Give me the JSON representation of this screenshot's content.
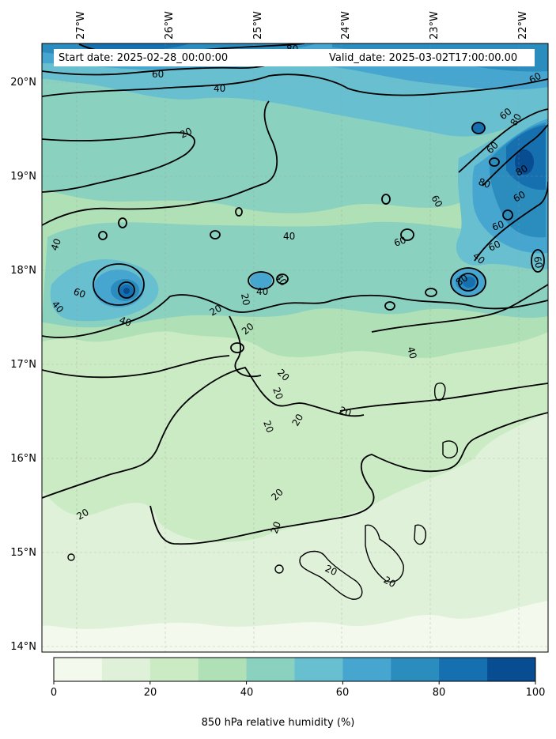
{
  "header": {
    "start_date": "Start date: 2025-02-28_00:00:00",
    "valid_date": "Valid_date: 2025-03-02T17:00:00.00"
  },
  "axes": {
    "longitude_ticks": [
      "27°W",
      "26°W",
      "25°W",
      "24°W",
      "23°W",
      "22°W"
    ],
    "latitude_ticks": [
      "20°N",
      "19°N",
      "18°N",
      "17°N",
      "16°N",
      "15°N",
      "14°N"
    ]
  },
  "map": {
    "extent": {
      "lon": [
        -27.4,
        -21.7
      ],
      "lat": [
        13.95,
        20.4
      ]
    },
    "contour_levels": [
      20,
      40,
      60,
      80
    ],
    "contour_labels": [
      "80",
      "60",
      "40",
      "20",
      "60",
      "60",
      "80",
      "80",
      "60",
      "80",
      "60",
      "60",
      "60",
      "60",
      "80",
      "40",
      "60",
      "40",
      "40",
      "40",
      "40",
      "40",
      "40",
      "60",
      "40",
      "20",
      "20",
      "20",
      "20",
      "20",
      "20",
      "20",
      "20",
      "20",
      "20",
      "20",
      "20",
      "20",
      "60"
    ]
  },
  "colorbar": {
    "title": "850 hPa relative humidity (%)",
    "tick_labels": [
      "0",
      "20",
      "40",
      "60",
      "80",
      "100"
    ],
    "range": [
      0,
      100
    ],
    "colors": [
      "#f3f9ec",
      "#dff2d9",
      "#cbebc5",
      "#b0e0b6",
      "#8ad1c0",
      "#68bfcf",
      "#46a6d0",
      "#2b8cbe",
      "#1670b0",
      "#084d91"
    ]
  }
}
